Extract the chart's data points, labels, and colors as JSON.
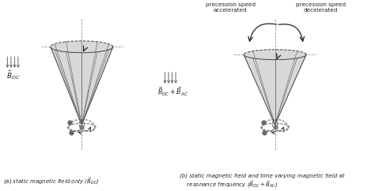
{
  "caption_a": "(a) static magnetic field only ($\\vec{B}_{DC}^{\\rightarrow}$)",
  "caption_b": "(b) static magnetic field and time varying magnetic field at\n    resonance frequency ($\\vec{B}_{DC}^{\\rightarrow}+\\vec{B}_{AC}^{\\rightarrow}$)",
  "label_bdc": "$\\vec{B}_{DC}$",
  "label_bdc_bac": "$\\vec{B}_{DC}^{\\rightarrow}+\\vec{B}_{AC}^{\\rightarrow}$",
  "label_accel": "precession speed\naccelerated",
  "label_decel": "precession speed\ndecelerated",
  "cone_fill": "#d8d8d8",
  "cone_edge": "#444444",
  "spoke_color": "#666666",
  "axis_color": "#888888",
  "arrow_color": "#222222",
  "orbital_color": "#555555",
  "dot_color": "#666666",
  "text_color": "#222222"
}
